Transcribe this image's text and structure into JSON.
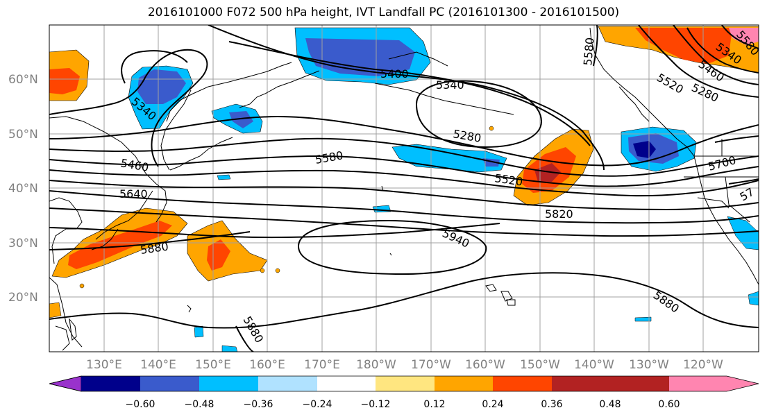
{
  "title": "2016101000 F072 500 hPa height, IVT Landfall PC (2016101300 - 2016101500)",
  "latitude_labels": [
    "60°N",
    "50°N",
    "40°N",
    "30°N",
    "20°N"
  ],
  "longitude_labels": [
    "130°E",
    "140°E",
    "150°E",
    "160°E",
    "170°E",
    "180°W",
    "170°W",
    "160°W",
    "150°W",
    "140°W",
    "130°W",
    "120°W"
  ],
  "contour_labels": [
    "5400",
    "5340",
    "5280",
    "5580",
    "5460",
    "5640",
    "5880",
    "5940",
    "5520",
    "5820",
    "5700",
    "5880",
    "5880",
    "5340",
    "5460",
    "5520",
    "5580",
    "5340",
    "5280",
    "5580",
    "57"
  ],
  "colorbar": {
    "colors": [
      "#9932CC",
      "#00008B",
      "#3A5BCC",
      "#00BFFF",
      "#B0E2FF",
      "#FFFFFF",
      "#FFE680",
      "#FFA500",
      "#FF4500",
      "#B22222",
      "#FF85B0"
    ],
    "tick_labels": [
      "−0.60",
      "−0.48",
      "−0.36",
      "−0.24",
      "−0.12",
      "0.12",
      "0.24",
      "0.36",
      "0.48",
      "0.60"
    ]
  }
}
